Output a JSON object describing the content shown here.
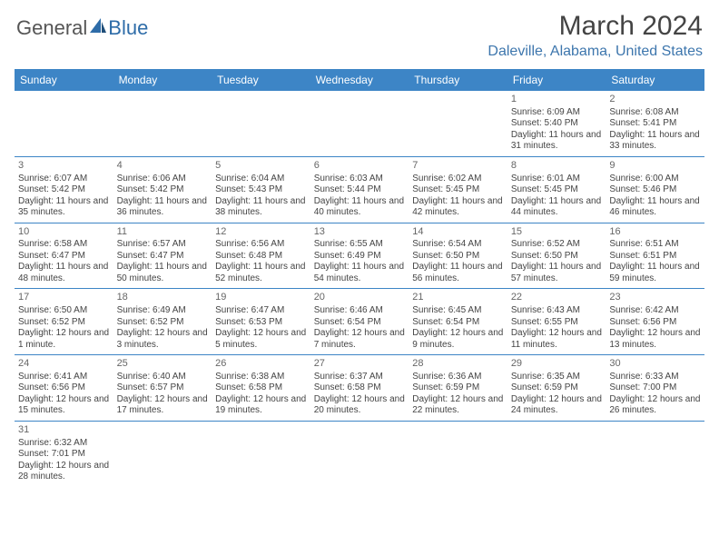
{
  "logo": {
    "text_left": "General",
    "text_right": "Blue"
  },
  "title": "March 2024",
  "location": "Daleville, Alabama, United States",
  "colors": {
    "header_bg": "#3d85c6",
    "header_text": "#ffffff",
    "title_color": "#444444",
    "location_color": "#3d76ad",
    "cell_text": "#444444",
    "row_border": "#3d85c6",
    "logo_blue": "#2e6ca8",
    "page_bg": "#ffffff"
  },
  "day_headers": [
    "Sunday",
    "Monday",
    "Tuesday",
    "Wednesday",
    "Thursday",
    "Friday",
    "Saturday"
  ],
  "weeks": [
    [
      null,
      null,
      null,
      null,
      null,
      {
        "n": "1",
        "sr": "Sunrise: 6:09 AM",
        "ss": "Sunset: 5:40 PM",
        "dl": "Daylight: 11 hours and 31 minutes."
      },
      {
        "n": "2",
        "sr": "Sunrise: 6:08 AM",
        "ss": "Sunset: 5:41 PM",
        "dl": "Daylight: 11 hours and 33 minutes."
      }
    ],
    [
      {
        "n": "3",
        "sr": "Sunrise: 6:07 AM",
        "ss": "Sunset: 5:42 PM",
        "dl": "Daylight: 11 hours and 35 minutes."
      },
      {
        "n": "4",
        "sr": "Sunrise: 6:06 AM",
        "ss": "Sunset: 5:42 PM",
        "dl": "Daylight: 11 hours and 36 minutes."
      },
      {
        "n": "5",
        "sr": "Sunrise: 6:04 AM",
        "ss": "Sunset: 5:43 PM",
        "dl": "Daylight: 11 hours and 38 minutes."
      },
      {
        "n": "6",
        "sr": "Sunrise: 6:03 AM",
        "ss": "Sunset: 5:44 PM",
        "dl": "Daylight: 11 hours and 40 minutes."
      },
      {
        "n": "7",
        "sr": "Sunrise: 6:02 AM",
        "ss": "Sunset: 5:45 PM",
        "dl": "Daylight: 11 hours and 42 minutes."
      },
      {
        "n": "8",
        "sr": "Sunrise: 6:01 AM",
        "ss": "Sunset: 5:45 PM",
        "dl": "Daylight: 11 hours and 44 minutes."
      },
      {
        "n": "9",
        "sr": "Sunrise: 6:00 AM",
        "ss": "Sunset: 5:46 PM",
        "dl": "Daylight: 11 hours and 46 minutes."
      }
    ],
    [
      {
        "n": "10",
        "sr": "Sunrise: 6:58 AM",
        "ss": "Sunset: 6:47 PM",
        "dl": "Daylight: 11 hours and 48 minutes."
      },
      {
        "n": "11",
        "sr": "Sunrise: 6:57 AM",
        "ss": "Sunset: 6:47 PM",
        "dl": "Daylight: 11 hours and 50 minutes."
      },
      {
        "n": "12",
        "sr": "Sunrise: 6:56 AM",
        "ss": "Sunset: 6:48 PM",
        "dl": "Daylight: 11 hours and 52 minutes."
      },
      {
        "n": "13",
        "sr": "Sunrise: 6:55 AM",
        "ss": "Sunset: 6:49 PM",
        "dl": "Daylight: 11 hours and 54 minutes."
      },
      {
        "n": "14",
        "sr": "Sunrise: 6:54 AM",
        "ss": "Sunset: 6:50 PM",
        "dl": "Daylight: 11 hours and 56 minutes."
      },
      {
        "n": "15",
        "sr": "Sunrise: 6:52 AM",
        "ss": "Sunset: 6:50 PM",
        "dl": "Daylight: 11 hours and 57 minutes."
      },
      {
        "n": "16",
        "sr": "Sunrise: 6:51 AM",
        "ss": "Sunset: 6:51 PM",
        "dl": "Daylight: 11 hours and 59 minutes."
      }
    ],
    [
      {
        "n": "17",
        "sr": "Sunrise: 6:50 AM",
        "ss": "Sunset: 6:52 PM",
        "dl": "Daylight: 12 hours and 1 minute."
      },
      {
        "n": "18",
        "sr": "Sunrise: 6:49 AM",
        "ss": "Sunset: 6:52 PM",
        "dl": "Daylight: 12 hours and 3 minutes."
      },
      {
        "n": "19",
        "sr": "Sunrise: 6:47 AM",
        "ss": "Sunset: 6:53 PM",
        "dl": "Daylight: 12 hours and 5 minutes."
      },
      {
        "n": "20",
        "sr": "Sunrise: 6:46 AM",
        "ss": "Sunset: 6:54 PM",
        "dl": "Daylight: 12 hours and 7 minutes."
      },
      {
        "n": "21",
        "sr": "Sunrise: 6:45 AM",
        "ss": "Sunset: 6:54 PM",
        "dl": "Daylight: 12 hours and 9 minutes."
      },
      {
        "n": "22",
        "sr": "Sunrise: 6:43 AM",
        "ss": "Sunset: 6:55 PM",
        "dl": "Daylight: 12 hours and 11 minutes."
      },
      {
        "n": "23",
        "sr": "Sunrise: 6:42 AM",
        "ss": "Sunset: 6:56 PM",
        "dl": "Daylight: 12 hours and 13 minutes."
      }
    ],
    [
      {
        "n": "24",
        "sr": "Sunrise: 6:41 AM",
        "ss": "Sunset: 6:56 PM",
        "dl": "Daylight: 12 hours and 15 minutes."
      },
      {
        "n": "25",
        "sr": "Sunrise: 6:40 AM",
        "ss": "Sunset: 6:57 PM",
        "dl": "Daylight: 12 hours and 17 minutes."
      },
      {
        "n": "26",
        "sr": "Sunrise: 6:38 AM",
        "ss": "Sunset: 6:58 PM",
        "dl": "Daylight: 12 hours and 19 minutes."
      },
      {
        "n": "27",
        "sr": "Sunrise: 6:37 AM",
        "ss": "Sunset: 6:58 PM",
        "dl": "Daylight: 12 hours and 20 minutes."
      },
      {
        "n": "28",
        "sr": "Sunrise: 6:36 AM",
        "ss": "Sunset: 6:59 PM",
        "dl": "Daylight: 12 hours and 22 minutes."
      },
      {
        "n": "29",
        "sr": "Sunrise: 6:35 AM",
        "ss": "Sunset: 6:59 PM",
        "dl": "Daylight: 12 hours and 24 minutes."
      },
      {
        "n": "30",
        "sr": "Sunrise: 6:33 AM",
        "ss": "Sunset: 7:00 PM",
        "dl": "Daylight: 12 hours and 26 minutes."
      }
    ],
    [
      {
        "n": "31",
        "sr": "Sunrise: 6:32 AM",
        "ss": "Sunset: 7:01 PM",
        "dl": "Daylight: 12 hours and 28 minutes."
      },
      null,
      null,
      null,
      null,
      null,
      null
    ]
  ]
}
